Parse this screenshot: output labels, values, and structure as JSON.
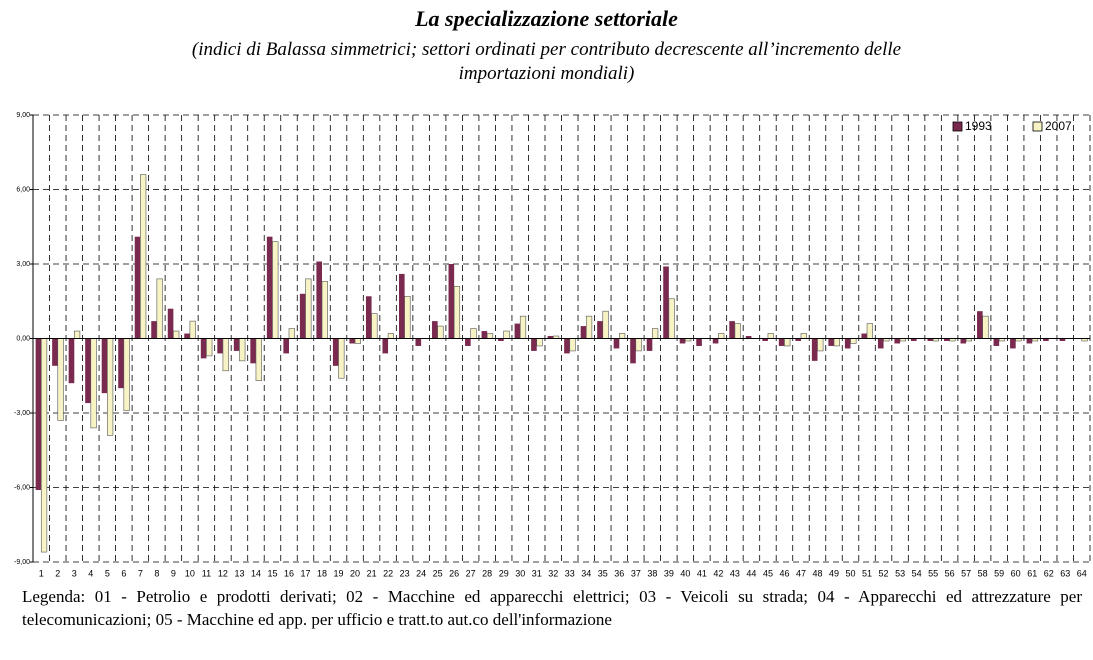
{
  "chart_data": {
    "type": "bar",
    "title": "La specializzazione settoriale",
    "subtitle": "(indici di Balassa simmetrici; settori ordinati per contributo decrescente all’incremento delle importazioni mondiali)",
    "note": "Legenda: 01 -  Petrolio e prodotti derivati; 02 -  Macchine ed apparecchi elettrici; 03 -  Veicoli su strada; 04 - Apparecchi ed attrezzature per telecomunicazioni; 05 -  Macchine ed app. per ufficio e tratt.to aut.co dell'informazione",
    "categories": [
      "1",
      "2",
      "3",
      "4",
      "5",
      "6",
      "7",
      "8",
      "9",
      "10",
      "11",
      "12",
      "13",
      "14",
      "15",
      "16",
      "17",
      "18",
      "19",
      "20",
      "21",
      "22",
      "23",
      "24",
      "25",
      "26",
      "27",
      "28",
      "29",
      "30",
      "31",
      "32",
      "33",
      "34",
      "35",
      "36",
      "37",
      "38",
      "39",
      "40",
      "41",
      "42",
      "43",
      "44",
      "45",
      "46",
      "47",
      "48",
      "49",
      "50",
      "51",
      "52",
      "53",
      "54",
      "55",
      "56",
      "57",
      "58",
      "59",
      "60",
      "61",
      "62",
      "63",
      "64"
    ],
    "series": [
      {
        "name": "1993",
        "color": "#7b2a4f",
        "values": [
          -6.1,
          -1.1,
          -1.8,
          -2.6,
          -2.2,
          -2.0,
          4.1,
          0.7,
          1.2,
          0.2,
          -0.8,
          -0.6,
          -0.5,
          -1.0,
          4.1,
          -0.6,
          1.8,
          3.1,
          -1.1,
          -0.2,
          1.7,
          -0.6,
          2.6,
          -0.3,
          0.7,
          3.0,
          -0.3,
          0.3,
          -0.1,
          0.6,
          -0.5,
          0.1,
          -0.6,
          0.5,
          0.7,
          -0.4,
          -1.0,
          -0.5,
          2.9,
          -0.2,
          -0.3,
          -0.2,
          0.7,
          0.1,
          -0.1,
          -0.3,
          -0.1,
          -0.9,
          -0.3,
          -0.4,
          0.2,
          -0.4,
          -0.2,
          -0.1,
          -0.1,
          -0.1,
          -0.2,
          1.1,
          -0.3,
          -0.4,
          -0.2,
          -0.1,
          -0.1,
          0.0
        ]
      },
      {
        "name": "2007",
        "color": "#f7f3c5",
        "values": [
          -8.6,
          -3.3,
          0.3,
          -3.6,
          -3.9,
          -2.9,
          6.6,
          2.4,
          0.3,
          0.7,
          -0.7,
          -1.3,
          -0.9,
          -1.7,
          3.9,
          0.4,
          2.4,
          2.3,
          -1.6,
          -0.2,
          1.0,
          0.2,
          1.7,
          0.0,
          0.5,
          2.1,
          0.4,
          0.2,
          0.3,
          0.9,
          -0.3,
          0.1,
          -0.5,
          0.9,
          1.1,
          0.2,
          -0.5,
          0.4,
          1.6,
          -0.1,
          0.0,
          0.2,
          0.6,
          0.0,
          0.2,
          -0.3,
          0.2,
          -0.5,
          -0.3,
          -0.2,
          0.6,
          -0.1,
          -0.1,
          0.0,
          -0.1,
          -0.1,
          -0.1,
          0.9,
          -0.1,
          -0.1,
          -0.1,
          0.0,
          0.0,
          -0.1
        ]
      }
    ],
    "ylim": [
      -9,
      9
    ],
    "yticks": [
      {
        "value": -9,
        "label": "-9,00"
      },
      {
        "value": -6,
        "label": "-6,00"
      },
      {
        "value": -3,
        "label": "-3,00"
      },
      {
        "value": 0,
        "label": "0,00"
      },
      {
        "value": 3,
        "label": "3,00"
      },
      {
        "value": 6,
        "label": "6,00"
      },
      {
        "value": 9,
        "label": "9,00"
      }
    ],
    "grid": true,
    "legend": "top-right"
  }
}
